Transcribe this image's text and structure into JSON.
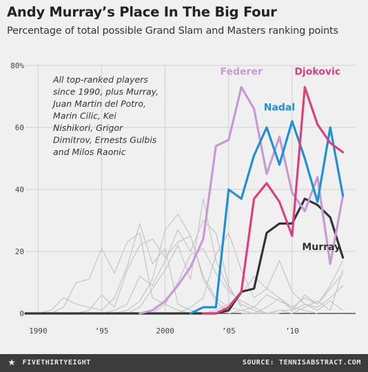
{
  "title": "Andy Murray’s Place In The Big Four",
  "subtitle": "Percentage of total possible Grand Slam and Masters ranking points",
  "footer": {
    "brand": "FIVETHIRTYEIGHT",
    "source": "SOURCE: TENNISABSTRACT.COM"
  },
  "colors": {
    "background": "#f0f0f0",
    "grid": "#cfcfcf",
    "others": "#c8c8c8",
    "Federer": "#c79ad4",
    "Nadal": "#1f8fd6",
    "Djokovic": "#dc3f7e",
    "Murray": "#333333"
  },
  "chart_data": {
    "type": "line",
    "title": "Andy Murray’s Place In The Big Four",
    "subtitle": "Percentage of total possible Grand Slam and Masters ranking points",
    "xlim": [
      1989,
      2015
    ],
    "ylim": [
      0,
      80
    ],
    "x_ticks": [
      1990,
      1995,
      2000,
      2005,
      2010
    ],
    "x_tick_labels": [
      "1990",
      "’95",
      "2000",
      "’05",
      "’10"
    ],
    "y_ticks": [
      0,
      20,
      40,
      60,
      80
    ],
    "y_tick_labels": [
      "0",
      "20",
      "40",
      "60",
      "80%"
    ],
    "grid": true,
    "annotation": [
      "All top-ranked players",
      "since 1990, plus Murray,",
      "Juan Martin del Potro,",
      "Marin Cilic, Kei",
      "Nishikori, Grigor",
      "Dimitrov, Ernests Gulbis",
      "and Milos Raonic"
    ],
    "highlighted_series": [
      {
        "name": "Federer",
        "label": "Federer",
        "x": [
          1998,
          1999,
          2000,
          2001,
          2002,
          2003,
          2004,
          2005,
          2006,
          2007,
          2008,
          2009,
          2010,
          2011,
          2012,
          2013,
          2014
        ],
        "y": [
          0,
          1,
          4,
          9,
          15,
          24,
          54,
          56,
          73,
          66,
          45,
          57,
          39,
          33,
          44,
          16,
          38
        ]
      },
      {
        "name": "Nadal",
        "label": "Nadal",
        "x": [
          2002,
          2003,
          2004,
          2005,
          2006,
          2007,
          2008,
          2009,
          2010,
          2011,
          2012,
          2013,
          2014
        ],
        "y": [
          0,
          2,
          2,
          40,
          37,
          51,
          60,
          48,
          62,
          50,
          36,
          60,
          38
        ]
      },
      {
        "name": "Djokovic",
        "label": "Djokovic",
        "x": [
          2003,
          2004,
          2005,
          2006,
          2007,
          2008,
          2009,
          2010,
          2011,
          2012,
          2013,
          2014
        ],
        "y": [
          0,
          0,
          2,
          7,
          37,
          42,
          36,
          25,
          73,
          61,
          55,
          52
        ]
      },
      {
        "name": "Murray",
        "label": "Murray",
        "x": [
          1989,
          2003,
          2004,
          2005,
          2006,
          2007,
          2008,
          2009,
          2010,
          2011,
          2012,
          2013,
          2014
        ],
        "y": [
          0,
          0,
          0,
          1,
          7,
          8,
          26,
          29,
          29,
          37,
          35,
          31,
          18
        ]
      }
    ],
    "other_series": [
      {
        "x": [
          1989,
          1990,
          1991,
          1992,
          1993,
          1994,
          1995,
          1996,
          1997,
          1998,
          1999,
          2000,
          2001,
          2002,
          2003
        ],
        "y": [
          0,
          0,
          1,
          5,
          3,
          2,
          1,
          5,
          15,
          29,
          16,
          21,
          3,
          1,
          0
        ]
      },
      {
        "x": [
          1989,
          1990,
          1991,
          1992,
          1993,
          1994,
          1995,
          1996,
          1997,
          1998,
          1999,
          2000,
          2001,
          2002,
          2003
        ],
        "y": [
          0,
          0,
          0,
          2,
          10,
          11,
          21,
          13,
          23,
          26,
          5,
          3,
          1,
          0,
          0
        ]
      },
      {
        "x": [
          1992,
          1993,
          1994,
          1995,
          1996,
          1997,
          1998,
          1999,
          2000,
          2001,
          2002,
          2003,
          2004,
          2005
        ],
        "y": [
          0,
          0,
          1,
          6,
          2,
          14,
          22,
          24,
          18,
          23,
          25,
          11,
          4,
          0
        ]
      },
      {
        "x": [
          1994,
          1995,
          1996,
          1997,
          1998,
          1999,
          2000,
          2001,
          2002,
          2003,
          2004,
          2005,
          2006
        ],
        "y": [
          0,
          0,
          1,
          3,
          12,
          9,
          17,
          27,
          20,
          30,
          26,
          9,
          2
        ]
      },
      {
        "x": [
          1996,
          1997,
          1998,
          1999,
          2000,
          2001,
          2002,
          2003,
          2004,
          2005,
          2006,
          2007
        ],
        "y": [
          0,
          1,
          4,
          11,
          27,
          32,
          25,
          12,
          5,
          2,
          1,
          0
        ]
      },
      {
        "x": [
          1997,
          1998,
          1999,
          2000,
          2001,
          2002,
          2003,
          2004,
          2005,
          2006,
          2007,
          2008
        ],
        "y": [
          0,
          2,
          8,
          14,
          22,
          11,
          37,
          17,
          8,
          3,
          1,
          0
        ]
      },
      {
        "x": [
          1998,
          1999,
          2000,
          2001,
          2002,
          2003,
          2004,
          2005,
          2006,
          2007,
          2008,
          2009
        ],
        "y": [
          0,
          0,
          3,
          10,
          19,
          21,
          13,
          7,
          4,
          2,
          0,
          0
        ]
      },
      {
        "x": [
          2000,
          2001,
          2002,
          2003,
          2004,
          2005,
          2006,
          2007,
          2008,
          2009,
          2010,
          2011,
          2012
        ],
        "y": [
          0,
          0,
          2,
          5,
          19,
          26,
          14,
          5,
          8,
          5,
          2,
          1,
          0
        ]
      },
      {
        "x": [
          2003,
          2004,
          2005,
          2006,
          2007,
          2008,
          2009,
          2010,
          2011,
          2012,
          2013,
          2014
        ],
        "y": [
          0,
          1,
          3,
          6,
          12,
          8,
          17,
          7,
          3,
          1,
          4,
          1
        ]
      },
      {
        "x": [
          2005,
          2006,
          2007,
          2008,
          2009,
          2010,
          2011,
          2012,
          2013,
          2014
        ],
        "y": [
          0,
          1,
          2,
          6,
          4,
          2,
          5,
          3,
          8,
          13
        ]
      },
      {
        "x": [
          2006,
          2007,
          2008,
          2009,
          2010,
          2011,
          2012,
          2013,
          2014
        ],
        "y": [
          0,
          0,
          2,
          5,
          1,
          6,
          3,
          9,
          17
        ]
      },
      {
        "x": [
          2007,
          2008,
          2009,
          2010,
          2011,
          2012,
          2013,
          2014
        ],
        "y": [
          0,
          0,
          1,
          1,
          3,
          2,
          5,
          9
        ]
      },
      {
        "x": [
          2008,
          2009,
          2010,
          2011,
          2012,
          2013,
          2014
        ],
        "y": [
          0,
          1,
          0,
          2,
          4,
          1,
          14
        ]
      }
    ]
  }
}
